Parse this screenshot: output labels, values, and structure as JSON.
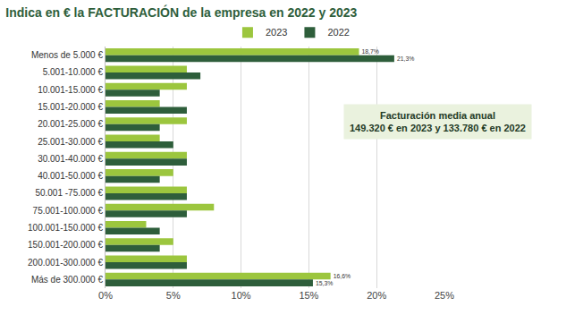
{
  "chart_data": {
    "type": "bar",
    "title": "Indica en € la FACTURACIÓN de la empresa en 2022 y 2023",
    "orientation": "horizontal",
    "categories": [
      "Menos de 5.000 €",
      "5.001-10.000 €",
      "10.001-15.000 €",
      "15.001-20.000 €",
      "20.001-25.000 €",
      "25.001-30.000 €",
      "30.001-40.000 €",
      "40.001-50.000 €",
      "50.001 -75.000 €",
      "75.001-100.000 €",
      "100.001-150.000 €",
      "150.001-200.000 €",
      "200.001-300.000 €",
      "Más de 300.000 €"
    ],
    "series": [
      {
        "name": "2023",
        "color": "#9cc63e",
        "values": [
          18.7,
          6,
          6,
          4,
          6,
          4,
          6,
          5,
          6,
          8,
          3,
          5,
          6,
          16.6
        ],
        "value_labels": [
          "18,7%",
          null,
          null,
          null,
          null,
          null,
          null,
          null,
          null,
          null,
          null,
          null,
          null,
          "16,6%"
        ]
      },
      {
        "name": "2022",
        "color": "#2e5e3b",
        "values": [
          21.3,
          7,
          4,
          6,
          4,
          5,
          6,
          4,
          6,
          6,
          4,
          4,
          6,
          15.3
        ],
        "value_labels": [
          "21,3%",
          null,
          null,
          null,
          null,
          null,
          null,
          null,
          null,
          null,
          null,
          null,
          null,
          "15,3%"
        ]
      }
    ],
    "xlim": [
      0,
      25
    ],
    "xticks": [
      {
        "value": 0,
        "label": "0%"
      },
      {
        "value": 5,
        "label": "5%"
      },
      {
        "value": 10,
        "label": "10%"
      },
      {
        "value": 15,
        "label": "15%"
      },
      {
        "value": 20,
        "label": "20%"
      },
      {
        "value": 25,
        "label": "25%"
      }
    ],
    "grid": true,
    "legend": "top",
    "data_labels": true,
    "annotation": {
      "title": "Facturación media anual",
      "text": "149.320 € en 2023 y 133.780 € en 2022"
    }
  }
}
